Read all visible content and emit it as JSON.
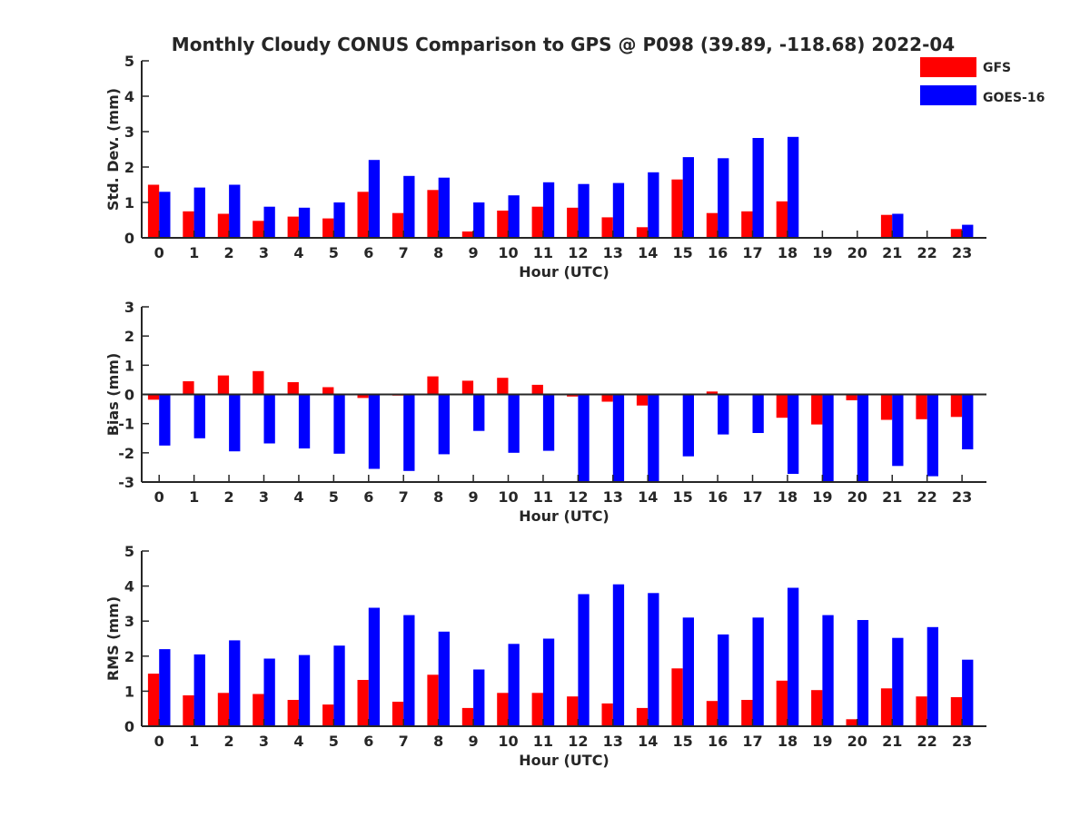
{
  "title": "Monthly Cloudy CONUS Comparison to GPS @ P098 (39.89, -118.68) 2022-04",
  "colors": {
    "GFS": "#ff0000",
    "GOES-16": "#0000ff",
    "axis": "#262626"
  },
  "legend": {
    "placement": "top-right",
    "entries": [
      "GFS",
      "GOES-16"
    ]
  },
  "chart_data": [
    {
      "type": "bar",
      "xlabel": "Hour (UTC)",
      "ylabel": "Std. Dev. (mm)",
      "ylim": [
        0,
        5
      ],
      "yticks": [
        0,
        1,
        2,
        3,
        4,
        5
      ],
      "categories": [
        "0",
        "1",
        "2",
        "3",
        "4",
        "5",
        "6",
        "7",
        "8",
        "9",
        "10",
        "11",
        "12",
        "13",
        "14",
        "15",
        "16",
        "17",
        "18",
        "19",
        "20",
        "21",
        "22",
        "23"
      ],
      "series": [
        {
          "name": "GFS",
          "values": [
            1.5,
            0.75,
            0.68,
            0.48,
            0.6,
            0.55,
            1.3,
            0.7,
            1.35,
            0.18,
            0.77,
            0.88,
            0.85,
            0.58,
            0.3,
            1.65,
            0.7,
            0.75,
            1.03,
            0,
            0,
            0.65,
            0,
            0.25
          ]
        },
        {
          "name": "GOES-16",
          "values": [
            1.3,
            1.42,
            1.5,
            0.88,
            0.85,
            1.0,
            2.2,
            1.75,
            1.7,
            1.0,
            1.2,
            1.57,
            1.52,
            1.55,
            1.85,
            2.28,
            2.25,
            2.82,
            2.85,
            0,
            0,
            0.68,
            0,
            0.37
          ]
        }
      ]
    },
    {
      "type": "bar",
      "xlabel": "Hour (UTC)",
      "ylabel": "Bias (mm)",
      "ylim": [
        -3,
        3
      ],
      "yticks": [
        -3,
        -2,
        -1,
        0,
        1,
        2,
        3
      ],
      "categories": [
        "0",
        "1",
        "2",
        "3",
        "4",
        "5",
        "6",
        "7",
        "8",
        "9",
        "10",
        "11",
        "12",
        "13",
        "14",
        "15",
        "16",
        "17",
        "18",
        "19",
        "20",
        "21",
        "22",
        "23"
      ],
      "series": [
        {
          "name": "GFS",
          "values": [
            -0.18,
            0.45,
            0.65,
            0.8,
            0.42,
            0.25,
            -0.12,
            -0.04,
            0.62,
            0.47,
            0.57,
            0.33,
            -0.07,
            -0.25,
            -0.38,
            0,
            0.1,
            0.02,
            -0.8,
            -1.03,
            -0.2,
            -0.87,
            -0.85,
            -0.77
          ]
        },
        {
          "name": "GOES-16",
          "values": [
            -1.75,
            -1.5,
            -1.95,
            -1.68,
            -1.85,
            -2.03,
            -2.55,
            -2.62,
            -2.05,
            -1.25,
            -2.0,
            -1.93,
            -3.0,
            -3.0,
            -3.0,
            -2.12,
            -1.37,
            -1.32,
            -2.72,
            -3.0,
            -3.0,
            -2.45,
            -2.8,
            -1.88
          ]
        }
      ]
    },
    {
      "type": "bar",
      "xlabel": "Hour (UTC)",
      "ylabel": "RMS (mm)",
      "ylim": [
        0,
        5
      ],
      "yticks": [
        0,
        1,
        2,
        3,
        4,
        5
      ],
      "categories": [
        "0",
        "1",
        "2",
        "3",
        "4",
        "5",
        "6",
        "7",
        "8",
        "9",
        "10",
        "11",
        "12",
        "13",
        "14",
        "15",
        "16",
        "17",
        "18",
        "19",
        "20",
        "21",
        "22",
        "23"
      ],
      "series": [
        {
          "name": "GFS",
          "values": [
            1.5,
            0.88,
            0.95,
            0.92,
            0.75,
            0.62,
            1.32,
            0.7,
            1.47,
            0.52,
            0.95,
            0.95,
            0.85,
            0.65,
            0.52,
            1.65,
            0.72,
            0.75,
            1.3,
            1.03,
            0.2,
            1.08,
            0.85,
            0.83
          ]
        },
        {
          "name": "GOES-16",
          "values": [
            2.2,
            2.05,
            2.45,
            1.93,
            2.03,
            2.3,
            3.38,
            3.17,
            2.7,
            1.62,
            2.35,
            2.5,
            3.77,
            4.05,
            3.8,
            3.1,
            2.62,
            3.1,
            3.95,
            3.17,
            3.03,
            2.52,
            2.83,
            1.9
          ]
        }
      ]
    }
  ]
}
